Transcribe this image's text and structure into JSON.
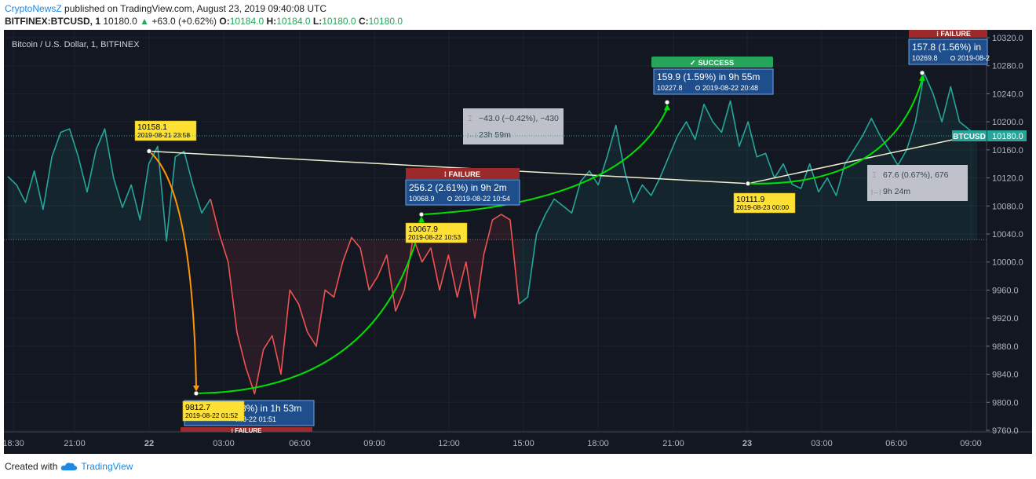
{
  "header": {
    "author": "CryptoNewsZ",
    "published": "published on TradingView.com, August 23, 2019 09:40:08 UTC",
    "symbol": "BITFINEX:BTCUSD, 1",
    "last": "10180.0",
    "change": "+63.0 (+0.62%)",
    "open_label": "O:",
    "open": "10184.0",
    "high_label": "H:",
    "high": "10184.0",
    "low_label": "L:",
    "low": "10180.0",
    "close_label": "C:",
    "close": "10180.0"
  },
  "footer": {
    "created": "Created with",
    "brand": "TradingView"
  },
  "colors": {
    "bg": "#131722",
    "up": "#26a69a",
    "down": "#ef5350",
    "white_line": "#f0f0d0",
    "orange": "#ff9800",
    "green_arrow": "#00e000",
    "yellow_label": "#ffe135",
    "blue_label": "#1e4f8c",
    "gray_label": "#d1d4dc",
    "success": "#26a65b",
    "failure": "#9c2a2a"
  },
  "chart_data": {
    "type": "line",
    "title": "Bitcoin / U.S. Dollar, 1, BITFINEX",
    "x_ticks": [
      "18:30",
      "21:00",
      "22",
      "03:00",
      "06:00",
      "09:00",
      "12:00",
      "15:00",
      "18:00",
      "21:00",
      "23",
      "03:00",
      "06:00",
      "09:00"
    ],
    "y_ticks": [
      "10320.0",
      "10280.0",
      "10240.0",
      "10200.0",
      "10160.0",
      "10120.0",
      "10080.0",
      "10040.0",
      "10000.0",
      "9960.0",
      "9920.0",
      "9880.0",
      "9840.0",
      "9800.0",
      "9760.0"
    ],
    "ylim": [
      9760,
      10320
    ],
    "last_price_label": "10180.0",
    "symbol_tag": "BTCUSD",
    "series": [
      {
        "values": [
          10122,
          10110,
          10085,
          10130,
          10075,
          10150,
          10185,
          10190,
          10150,
          10100,
          10160,
          10190,
          10120,
          10078,
          10110,
          10060,
          10140,
          10165,
          10030,
          10150,
          10158,
          10110,
          10070,
          10090,
          10040,
          10000,
          9900,
          9850,
          9812,
          9875,
          9895,
          9840,
          9960,
          9940,
          9900,
          9880,
          9960,
          9950,
          10000,
          10035,
          10020,
          9960,
          9980,
          10010,
          9930,
          9960,
          10035,
          10000,
          10020,
          9960,
          10010,
          9950,
          10000,
          9920,
          10010,
          10060,
          10068,
          10060,
          9940,
          9950,
          10040,
          10068,
          10090,
          10080,
          10070,
          10115,
          10130,
          10110,
          10150,
          10195,
          10130,
          10085,
          10110,
          10095,
          10120,
          10150,
          10180,
          10200,
          10175,
          10225,
          10200,
          10185,
          10230,
          10165,
          10200,
          10150,
          10155,
          10120,
          10140,
          10111,
          10105,
          10140,
          10100,
          10120,
          10095,
          10140,
          10160,
          10180,
          10205,
          10180,
          10160,
          10138,
          10160,
          10200,
          10269,
          10240,
          10200,
          10250,
          10200,
          10190,
          10180
        ]
      }
    ],
    "red_segment_index_range": [
      23,
      58
    ],
    "annotations": {
      "p1": {
        "price": "10158.1",
        "time": "2019-08-21 23:58"
      },
      "p2": {
        "price": "9812.7",
        "time": "2019-08-22 01:52"
      },
      "p2_hidden": {
        "text": "…8%) in 1h 53m",
        "sub": "…8-22  01:51"
      },
      "p3": {
        "price": "10067.9",
        "time": "2019-08-22 10:53"
      },
      "p4": {
        "price": "10111.9",
        "time": "2019-08-23 00:00"
      },
      "box1": {
        "title": "256.2 (2.61%) in 9h 2m",
        "sub_price": "10068.9",
        "sub_time": "2019-08-22  10:54",
        "badge": "FAILURE"
      },
      "box2": {
        "title": "159.9 (1.59%) in 9h 55m",
        "sub_price": "10227.8",
        "sub_time": "2019-08-22  20:48",
        "badge": "SUCCESS"
      },
      "box3": {
        "title": "157.8 (1.56%) in",
        "sub_price": "10269.8",
        "sub_time": "2019-08-2",
        "badge": "FAILURE"
      },
      "box4_badge": "FAILURE",
      "measure1": {
        "line1": "−43.0 (−0.42%), −430",
        "line2": "23h 59m"
      },
      "measure2": {
        "line1": "67.6 (0.67%), 676",
        "line2": "9h 24m"
      }
    }
  }
}
